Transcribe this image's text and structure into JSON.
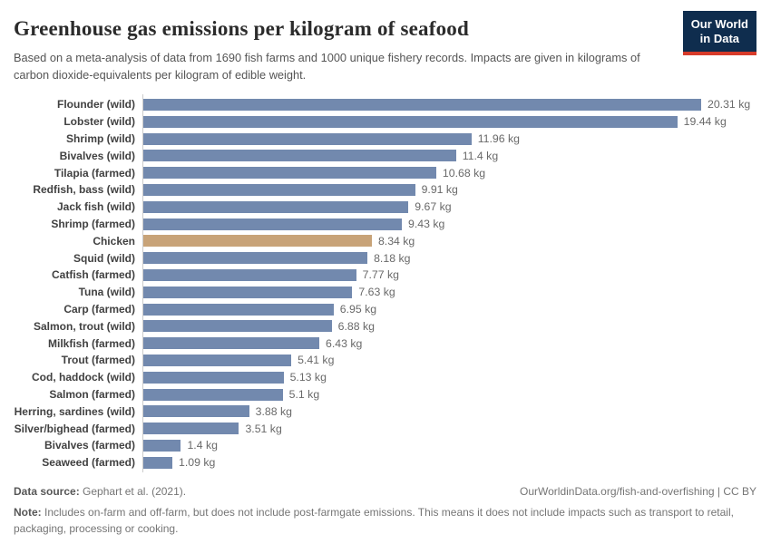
{
  "header": {
    "title": "Greenhouse gas emissions per kilogram of seafood",
    "subtitle": "Based on a meta-analysis of data from 1690 fish farms and 1000 unique fishery records. Impacts are given in kilograms of carbon dioxide-equivalents per kilogram of edible weight.",
    "logo_line1": "Our World",
    "logo_line2": "in Data"
  },
  "chart_data": {
    "type": "bar",
    "orientation": "horizontal",
    "title": "Greenhouse gas emissions per kilogram of seafood",
    "unit": "kg CO2-equivalents per kg edible weight",
    "xlim": [
      0,
      20.31
    ],
    "grid": false,
    "legend": "none",
    "categories": [
      "Flounder (wild)",
      "Lobster (wild)",
      "Shrimp (wild)",
      "Bivalves (wild)",
      "Tilapia (farmed)",
      "Redfish, bass (wild)",
      "Jack fish (wild)",
      "Shrimp (farmed)",
      "Chicken",
      "Squid (wild)",
      "Catfish (farmed)",
      "Tuna (wild)",
      "Carp (farmed)",
      "Salmon, trout (wild)",
      "Milkfish (farmed)",
      "Trout (farmed)",
      "Cod, haddock (wild)",
      "Salmon (farmed)",
      "Herring, sardines (wild)",
      "Silver/bighead (farmed)",
      "Bivalves (farmed)",
      "Seaweed (farmed)"
    ],
    "values": [
      20.31,
      19.44,
      11.96,
      11.4,
      10.68,
      9.91,
      9.67,
      9.43,
      8.34,
      8.18,
      7.77,
      7.63,
      6.95,
      6.88,
      6.43,
      5.41,
      5.13,
      5.1,
      3.88,
      3.51,
      1.4,
      1.09
    ],
    "value_labels": [
      "20.31 kg",
      "19.44 kg",
      "11.96 kg",
      "11.4 kg",
      "10.68 kg",
      "9.91 kg",
      "9.67 kg",
      "9.43 kg",
      "8.34 kg",
      "8.18 kg",
      "7.77 kg",
      "7.63 kg",
      "6.95 kg",
      "6.88 kg",
      "6.43 kg",
      "5.41 kg",
      "5.13 kg",
      "5.1 kg",
      "3.88 kg",
      "3.51 kg",
      "1.4 kg",
      "1.09 kg"
    ],
    "highlight_category": "Chicken",
    "bar_color": "#7289ae",
    "highlight_color": "#c8a378"
  },
  "footer": {
    "source_label": "Data source:",
    "source_text": " Gephart et al. (2021).",
    "link": "OurWorldinData.org/fish-and-overfishing | CC BY",
    "note_label": "Note:",
    "note_text": " Includes on-farm and off-farm, but does not include post-farmgate emissions. This means it does not include impacts such as transport to retail, packaging, processing or cooking."
  }
}
